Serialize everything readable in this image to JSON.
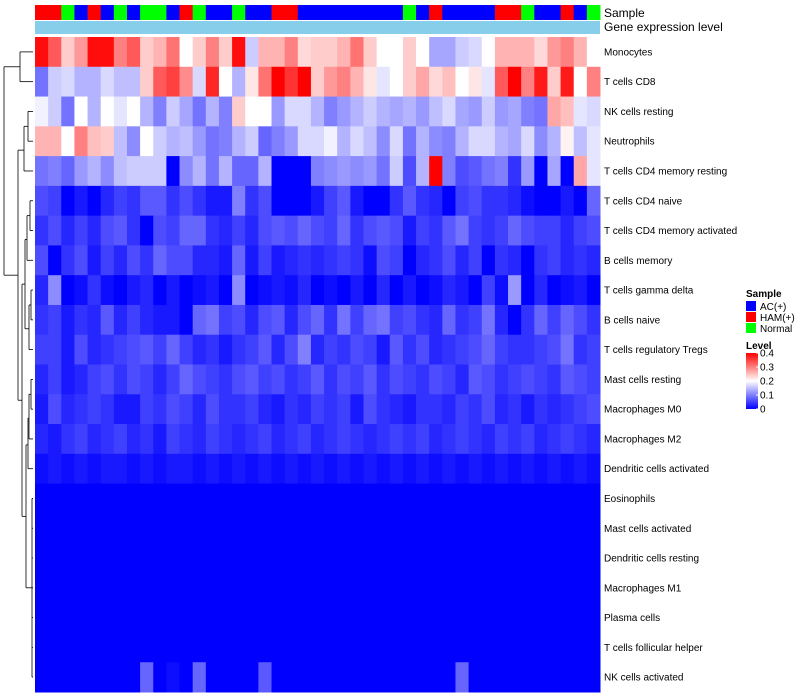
{
  "chart_data": {
    "type": "heatmap",
    "annotation_tracks": [
      "Sample",
      "Gene expression level"
    ],
    "row_labels": [
      "Monocytes",
      "T cells CD8",
      "NK cells resting",
      "Neutrophils",
      "T cells CD4 memory resting",
      "T cells CD4 naive",
      "T cells CD4 memory activated",
      "B cells memory",
      "T cells gamma delta",
      "B cells naive",
      "T cells regulatory  Tregs",
      "Mast cells resting",
      "Macrophages M0",
      "Macrophages M2",
      "Dendritic cells activated",
      "Eosinophils",
      "Mast cells activated",
      "Dendritic cells resting",
      "Macrophages M1",
      "Plasma cells",
      "T cells follicular helper",
      "NK cells activated"
    ],
    "sample_groups": [
      "HAM(+)",
      "HAM(+)",
      "Normal",
      "AC(+)",
      "HAM(+)",
      "AC(+)",
      "Normal",
      "AC(+)",
      "Normal",
      "Normal",
      "AC(+)",
      "HAM(+)",
      "Normal",
      "AC(+)",
      "AC(+)",
      "Normal",
      "AC(+)",
      "AC(+)",
      "HAM(+)",
      "HAM(+)",
      "AC(+)",
      "AC(+)",
      "AC(+)",
      "AC(+)",
      "AC(+)",
      "AC(+)",
      "AC(+)",
      "AC(+)",
      "Normal",
      "AC(+)",
      "HAM(+)",
      "AC(+)",
      "AC(+)",
      "AC(+)",
      "AC(+)",
      "HAM(+)",
      "HAM(+)",
      "Normal",
      "AC(+)",
      "AC(+)",
      "HAM(+)",
      "AC(+)",
      "Normal"
    ],
    "level_range": [
      0,
      0.4
    ],
    "values": [
      [
        0.39,
        0.33,
        0.24,
        0.28,
        0.39,
        0.39,
        0.3,
        0.33,
        0.24,
        0.26,
        0.31,
        0.2,
        0.24,
        0.3,
        0.24,
        0.39,
        0.16,
        0.26,
        0.26,
        0.3,
        0.23,
        0.24,
        0.24,
        0.26,
        0.31,
        0.24,
        0.2,
        0.2,
        0.24,
        0.2,
        0.13,
        0.13,
        0.16,
        0.17,
        0.2,
        0.26,
        0.26,
        0.26,
        0.23,
        0.28,
        0.3,
        0.26,
        0.2
      ],
      [
        0.09,
        0.16,
        0.17,
        0.14,
        0.14,
        0.17,
        0.15,
        0.15,
        0.24,
        0.33,
        0.35,
        0.29,
        0.17,
        0.37,
        0.2,
        0.14,
        0.22,
        0.31,
        0.4,
        0.36,
        0.4,
        0.24,
        0.28,
        0.3,
        0.26,
        0.22,
        0.18,
        0.2,
        0.24,
        0.27,
        0.23,
        0.25,
        0.2,
        0.22,
        0.18,
        0.33,
        0.4,
        0.3,
        0.38,
        0.24,
        0.38,
        0.2,
        0.3
      ],
      [
        0.19,
        0.16,
        0.09,
        0.2,
        0.14,
        0.2,
        0.18,
        0.2,
        0.14,
        0.1,
        0.16,
        0.13,
        0.09,
        0.14,
        0.1,
        0.24,
        0.2,
        0.2,
        0.12,
        0.17,
        0.17,
        0.14,
        0.1,
        0.12,
        0.14,
        0.16,
        0.14,
        0.13,
        0.14,
        0.12,
        0.15,
        0.17,
        0.13,
        0.12,
        0.16,
        0.12,
        0.13,
        0.1,
        0.09,
        0.27,
        0.25,
        0.18,
        0.17
      ],
      [
        0.26,
        0.26,
        0.2,
        0.3,
        0.25,
        0.24,
        0.15,
        0.11,
        0.2,
        0.16,
        0.14,
        0.15,
        0.12,
        0.09,
        0.1,
        0.14,
        0.16,
        0.08,
        0.1,
        0.12,
        0.17,
        0.17,
        0.19,
        0.14,
        0.17,
        0.15,
        0.11,
        0.17,
        0.09,
        0.14,
        0.11,
        0.1,
        0.14,
        0.17,
        0.17,
        0.14,
        0.13,
        0.17,
        0.11,
        0.14,
        0.21,
        0.15,
        0.18
      ],
      [
        0.09,
        0.1,
        0.08,
        0.12,
        0.14,
        0.11,
        0.15,
        0.16,
        0.16,
        0.16,
        0.0,
        0.11,
        0.14,
        0.09,
        0.14,
        0.08,
        0.08,
        0.14,
        0.0,
        0.0,
        0.0,
        0.1,
        0.11,
        0.12,
        0.11,
        0.12,
        0.09,
        0.16,
        0.06,
        0.14,
        0.4,
        0.1,
        0.06,
        0.07,
        0.09,
        0.1,
        0.04,
        0.12,
        0.0,
        0.13,
        0.0,
        0.27,
        0.18
      ],
      [
        0.06,
        0.05,
        0.0,
        0.02,
        0.0,
        0.03,
        0.05,
        0.04,
        0.07,
        0.07,
        0.04,
        0.06,
        0.04,
        0.02,
        0.02,
        0.1,
        0.04,
        0.06,
        0.0,
        0.0,
        0.0,
        0.02,
        0.05,
        0.07,
        0.02,
        0.0,
        0.0,
        0.04,
        0.07,
        0.04,
        0.03,
        0.0,
        0.05,
        0.06,
        0.04,
        0.04,
        0.03,
        0.01,
        0.0,
        0.0,
        0.02,
        0.0,
        0.08
      ],
      [
        0.04,
        0.06,
        0.03,
        0.05,
        0.03,
        0.06,
        0.07,
        0.04,
        0.0,
        0.06,
        0.05,
        0.08,
        0.08,
        0.04,
        0.03,
        0.05,
        0.03,
        0.06,
        0.07,
        0.06,
        0.08,
        0.06,
        0.05,
        0.08,
        0.04,
        0.06,
        0.07,
        0.06,
        0.02,
        0.05,
        0.04,
        0.07,
        0.09,
        0.05,
        0.04,
        0.05,
        0.08,
        0.06,
        0.05,
        0.05,
        0.03,
        0.05,
        0.06
      ],
      [
        0.06,
        0.0,
        0.04,
        0.06,
        0.02,
        0.05,
        0.03,
        0.06,
        0.04,
        0.08,
        0.06,
        0.06,
        0.03,
        0.03,
        0.02,
        0.08,
        0.02,
        0.05,
        0.02,
        0.03,
        0.04,
        0.03,
        0.04,
        0.05,
        0.04,
        0.01,
        0.06,
        0.05,
        0.0,
        0.03,
        0.04,
        0.06,
        0.03,
        0.05,
        0.0,
        0.04,
        0.03,
        0.0,
        0.04,
        0.05,
        0.03,
        0.04,
        0.03
      ],
      [
        0.03,
        0.11,
        0.0,
        0.01,
        0.04,
        0.01,
        0.0,
        0.02,
        0.03,
        0.0,
        0.02,
        0.0,
        0.01,
        0.02,
        0.0,
        0.11,
        0.0,
        0.01,
        0.02,
        0.01,
        0.03,
        0.0,
        0.01,
        0.0,
        0.02,
        0.0,
        0.03,
        0.0,
        0.02,
        0.0,
        0.01,
        0.03,
        0.02,
        0.0,
        0.05,
        0.01,
        0.12,
        0.0,
        0.03,
        0.0,
        0.01,
        0.02,
        0.0
      ],
      [
        0.04,
        0.05,
        0.02,
        0.04,
        0.03,
        0.07,
        0.03,
        0.05,
        0.03,
        0.02,
        0.02,
        0.0,
        0.08,
        0.09,
        0.05,
        0.06,
        0.03,
        0.06,
        0.07,
        0.03,
        0.06,
        0.08,
        0.04,
        0.09,
        0.05,
        0.08,
        0.09,
        0.05,
        0.06,
        0.04,
        0.03,
        0.08,
        0.04,
        0.05,
        0.09,
        0.03,
        0.0,
        0.04,
        0.08,
        0.05,
        0.08,
        0.06,
        0.04
      ],
      [
        0.05,
        0.05,
        0.02,
        0.06,
        0.03,
        0.04,
        0.05,
        0.06,
        0.07,
        0.05,
        0.08,
        0.05,
        0.03,
        0.04,
        0.02,
        0.04,
        0.05,
        0.07,
        0.03,
        0.06,
        0.1,
        0.03,
        0.05,
        0.04,
        0.06,
        0.05,
        0.02,
        0.07,
        0.04,
        0.06,
        0.03,
        0.04,
        0.05,
        0.06,
        0.08,
        0.05,
        0.04,
        0.04,
        0.05,
        0.06,
        0.09,
        0.04,
        0.05
      ],
      [
        0.03,
        0.05,
        0.02,
        0.03,
        0.05,
        0.06,
        0.04,
        0.06,
        0.05,
        0.03,
        0.05,
        0.08,
        0.06,
        0.05,
        0.04,
        0.06,
        0.07,
        0.05,
        0.06,
        0.04,
        0.05,
        0.07,
        0.04,
        0.06,
        0.05,
        0.07,
        0.04,
        0.06,
        0.05,
        0.04,
        0.06,
        0.05,
        0.03,
        0.07,
        0.06,
        0.04,
        0.05,
        0.06,
        0.05,
        0.04,
        0.07,
        0.06,
        0.05
      ],
      [
        0.02,
        0.06,
        0.03,
        0.04,
        0.05,
        0.04,
        0.02,
        0.02,
        0.05,
        0.04,
        0.06,
        0.05,
        0.03,
        0.06,
        0.04,
        0.04,
        0.05,
        0.03,
        0.02,
        0.04,
        0.03,
        0.05,
        0.04,
        0.05,
        0.02,
        0.06,
        0.04,
        0.03,
        0.02,
        0.04,
        0.04,
        0.03,
        0.05,
        0.04,
        0.06,
        0.03,
        0.04,
        0.02,
        0.04,
        0.03,
        0.04,
        0.05,
        0.06
      ],
      [
        0.03,
        0.02,
        0.04,
        0.05,
        0.03,
        0.04,
        0.05,
        0.03,
        0.04,
        0.02,
        0.05,
        0.04,
        0.03,
        0.05,
        0.04,
        0.03,
        0.04,
        0.05,
        0.03,
        0.04,
        0.05,
        0.03,
        0.04,
        0.05,
        0.04,
        0.03,
        0.04,
        0.05,
        0.04,
        0.05,
        0.03,
        0.04,
        0.05,
        0.04,
        0.03,
        0.05,
        0.04,
        0.05,
        0.03,
        0.04,
        0.05,
        0.04,
        0.03
      ],
      [
        0.01,
        0.02,
        0.01,
        0.02,
        0.01,
        0.02,
        0.02,
        0.01,
        0.02,
        0.01,
        0.02,
        0.02,
        0.01,
        0.02,
        0.01,
        0.02,
        0.01,
        0.02,
        0.01,
        0.02,
        0.01,
        0.02,
        0.01,
        0.02,
        0.01,
        0.02,
        0.01,
        0.02,
        0.01,
        0.02,
        0.01,
        0.02,
        0.01,
        0.02,
        0.01,
        0.02,
        0.01,
        0.02,
        0.01,
        0.02,
        0.01,
        0.02,
        0.01
      ],
      [
        0.0,
        0.0,
        0.0,
        0.0,
        0.0,
        0.0,
        0.0,
        0.0,
        0.0,
        0.0,
        0.0,
        0.0,
        0.0,
        0.0,
        0.0,
        0.0,
        0.0,
        0.0,
        0.0,
        0.0,
        0.0,
        0.0,
        0.0,
        0.0,
        0.0,
        0.0,
        0.0,
        0.0,
        0.0,
        0.0,
        0.0,
        0.0,
        0.0,
        0.0,
        0.0,
        0.0,
        0.0,
        0.0,
        0.0,
        0.0,
        0.0,
        0.0,
        0.0
      ],
      [
        0.0,
        0.0,
        0.0,
        0.0,
        0.0,
        0.0,
        0.0,
        0.0,
        0.0,
        0.0,
        0.0,
        0.0,
        0.0,
        0.0,
        0.0,
        0.0,
        0.0,
        0.0,
        0.0,
        0.0,
        0.0,
        0.0,
        0.0,
        0.0,
        0.0,
        0.0,
        0.0,
        0.0,
        0.0,
        0.0,
        0.0,
        0.0,
        0.0,
        0.0,
        0.0,
        0.0,
        0.0,
        0.0,
        0.0,
        0.0,
        0.0,
        0.0,
        0.0
      ],
      [
        0.0,
        0.0,
        0.0,
        0.0,
        0.0,
        0.0,
        0.0,
        0.0,
        0.0,
        0.0,
        0.0,
        0.0,
        0.0,
        0.0,
        0.0,
        0.0,
        0.0,
        0.0,
        0.0,
        0.0,
        0.0,
        0.0,
        0.0,
        0.0,
        0.0,
        0.0,
        0.0,
        0.0,
        0.0,
        0.0,
        0.0,
        0.0,
        0.0,
        0.0,
        0.0,
        0.0,
        0.0,
        0.0,
        0.0,
        0.0,
        0.0,
        0.0,
        0.0
      ],
      [
        0.0,
        0.0,
        0.0,
        0.0,
        0.0,
        0.0,
        0.0,
        0.0,
        0.0,
        0.0,
        0.0,
        0.0,
        0.0,
        0.0,
        0.0,
        0.0,
        0.0,
        0.0,
        0.0,
        0.0,
        0.0,
        0.0,
        0.0,
        0.0,
        0.0,
        0.0,
        0.0,
        0.0,
        0.0,
        0.0,
        0.0,
        0.0,
        0.0,
        0.0,
        0.0,
        0.0,
        0.0,
        0.0,
        0.0,
        0.0,
        0.0,
        0.0,
        0.0
      ],
      [
        0.0,
        0.0,
        0.0,
        0.0,
        0.0,
        0.0,
        0.0,
        0.0,
        0.0,
        0.0,
        0.0,
        0.0,
        0.0,
        0.0,
        0.0,
        0.0,
        0.0,
        0.0,
        0.0,
        0.0,
        0.0,
        0.0,
        0.0,
        0.0,
        0.0,
        0.0,
        0.0,
        0.0,
        0.0,
        0.0,
        0.0,
        0.0,
        0.0,
        0.0,
        0.0,
        0.0,
        0.0,
        0.0,
        0.0,
        0.0,
        0.0,
        0.0,
        0.0
      ],
      [
        0.0,
        0.0,
        0.0,
        0.0,
        0.0,
        0.0,
        0.0,
        0.0,
        0.0,
        0.0,
        0.0,
        0.0,
        0.0,
        0.0,
        0.0,
        0.0,
        0.0,
        0.0,
        0.0,
        0.0,
        0.0,
        0.0,
        0.0,
        0.0,
        0.0,
        0.0,
        0.0,
        0.0,
        0.0,
        0.0,
        0.0,
        0.0,
        0.0,
        0.0,
        0.0,
        0.0,
        0.0,
        0.0,
        0.0,
        0.0,
        0.0,
        0.0,
        0.0
      ],
      [
        0.0,
        0.0,
        0.0,
        0.0,
        0.0,
        0.0,
        0.0,
        0.0,
        0.08,
        0.0,
        0.01,
        0.0,
        0.08,
        0.0,
        0.0,
        0.0,
        0.0,
        0.07,
        0.0,
        0.0,
        0.0,
        0.0,
        0.0,
        0.0,
        0.0,
        0.0,
        0.0,
        0.0,
        0.0,
        0.0,
        0.0,
        0.0,
        0.08,
        0.0,
        0.0,
        0.0,
        0.0,
        0.0,
        0.0,
        0.0,
        0.0,
        0.0,
        0.0
      ]
    ],
    "legend": {
      "sample_title": "Sample",
      "sample_entries": [
        {
          "label": "AC(+)",
          "color": "#0000ff"
        },
        {
          "label": "HAM(+)",
          "color": "#ff0000"
        },
        {
          "label": "Normal",
          "color": "#00ff00"
        }
      ],
      "level_title": "Level",
      "level_ticks": [
        "0.4",
        "0.3",
        "0.2",
        "0.1",
        "0"
      ],
      "level_tick_values": [
        0.4,
        0.3,
        0.2,
        0.1,
        0
      ]
    }
  },
  "colors": {
    "low": "#0000ff",
    "mid": "#ffffff",
    "high": "#ff0000",
    "expression_track": "#87ceeb",
    "dendrogram": "#000000"
  }
}
